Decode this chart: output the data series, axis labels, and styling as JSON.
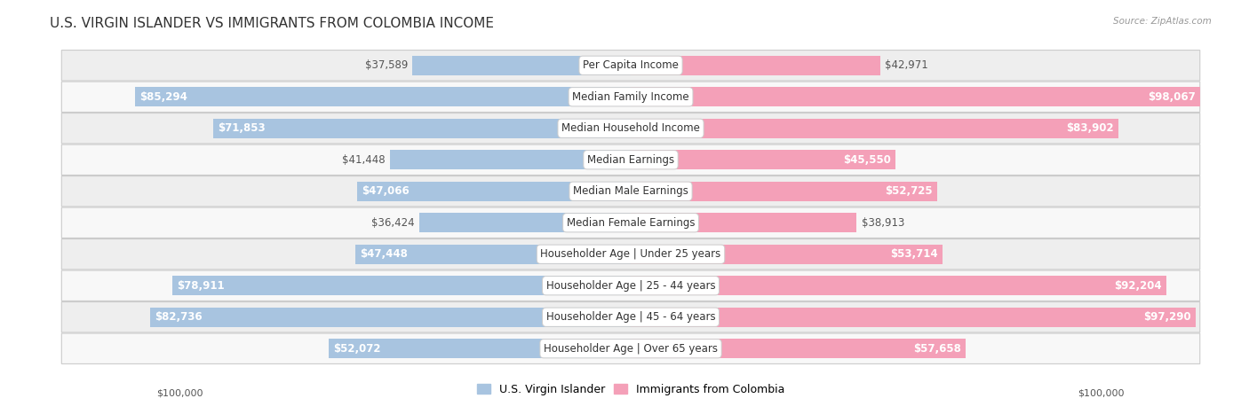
{
  "title": "U.S. VIRGIN ISLANDER VS IMMIGRANTS FROM COLOMBIA INCOME",
  "source": "Source: ZipAtlas.com",
  "categories": [
    "Per Capita Income",
    "Median Family Income",
    "Median Household Income",
    "Median Earnings",
    "Median Male Earnings",
    "Median Female Earnings",
    "Householder Age | Under 25 years",
    "Householder Age | 25 - 44 years",
    "Householder Age | 45 - 64 years",
    "Householder Age | Over 65 years"
  ],
  "left_values": [
    37589,
    85294,
    71853,
    41448,
    47066,
    36424,
    47448,
    78911,
    82736,
    52072
  ],
  "right_values": [
    42971,
    98067,
    83902,
    45550,
    52725,
    38913,
    53714,
    92204,
    97290,
    57658
  ],
  "left_color": "#a8c4e0",
  "right_color": "#f4a0b8",
  "left_label": "U.S. Virgin Islander",
  "right_label": "Immigrants from Colombia",
  "max_value": 100000,
  "title_fontsize": 11,
  "label_fontsize": 8.5,
  "value_fontsize": 8.5,
  "bg_color": "#ffffff",
  "row_bg_even": "#eeeeee",
  "row_bg_odd": "#f8f8f8",
  "axis_label_left": "$100,000",
  "axis_label_right": "$100,000",
  "inside_threshold": 45000,
  "left_color_dark": "#6699cc",
  "right_color_dark": "#ee6688"
}
